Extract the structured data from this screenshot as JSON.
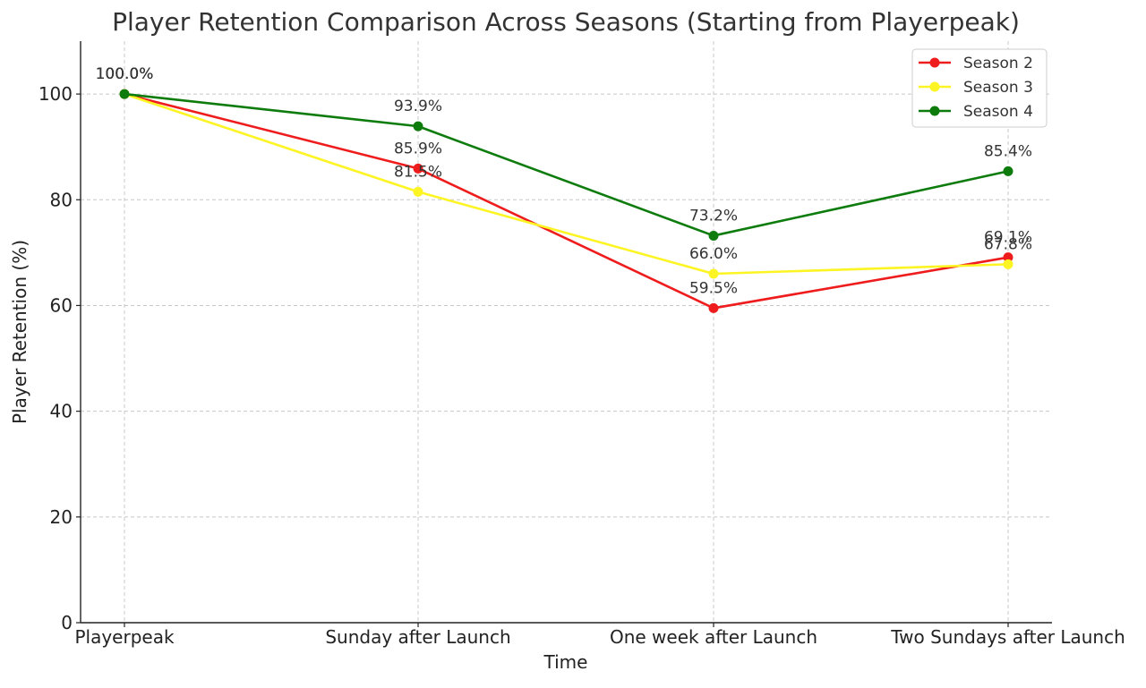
{
  "chart_data": {
    "type": "line",
    "title": "Player Retention Comparison Across Seasons (Starting from Playerpeak)",
    "xlabel": "Time",
    "ylabel": "Player Retention (%)",
    "categories": [
      "Playerpeak",
      "Sunday after Launch",
      "One week after Launch",
      "Two Sundays after Launch"
    ],
    "ylim": [
      0,
      110
    ],
    "yticks": [
      0,
      20,
      40,
      60,
      80,
      100
    ],
    "grid": true,
    "legend_position": "top-right",
    "series": [
      {
        "name": "Season 2",
        "color": "#ee1c1c",
        "values": [
          100.0,
          85.9,
          59.5,
          69.1
        ],
        "labels": [
          "100.0%",
          "85.9%",
          "59.5%",
          "69.1%"
        ]
      },
      {
        "name": "Season 3",
        "color": "#fdf423",
        "values": [
          100.0,
          81.5,
          66.0,
          67.8
        ],
        "labels": [
          "100.0%",
          "81.5%",
          "66.0%",
          "67.8%"
        ]
      },
      {
        "name": "Season 4",
        "color": "#0d7c0d",
        "values": [
          100.0,
          93.9,
          73.2,
          85.4
        ],
        "labels": [
          "100.0%",
          "93.9%",
          "73.2%",
          "85.4%"
        ]
      }
    ]
  }
}
